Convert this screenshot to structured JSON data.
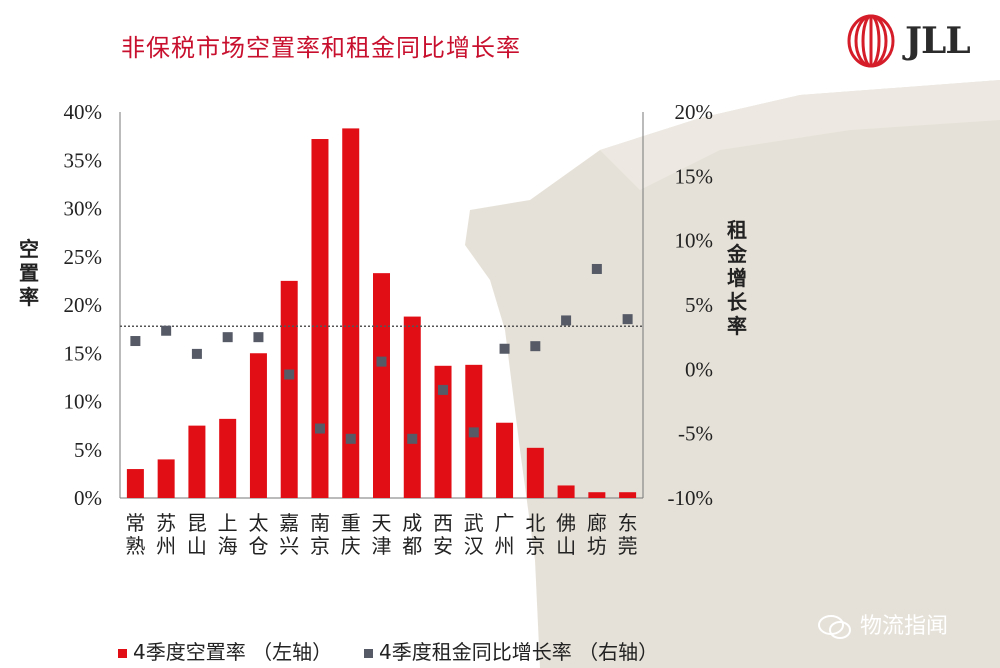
{
  "chart_data": {
    "type": "bar",
    "title": "非保税市场空置率和租金同比增长率",
    "categories": [
      "常熟",
      "苏州",
      "昆山",
      "上海",
      "太仓",
      "嘉兴",
      "南京",
      "重庆",
      "天津",
      "成都",
      "西安",
      "武汉",
      "广州",
      "北京",
      "佛山",
      "廊坊",
      "东莞"
    ],
    "series": [
      {
        "name": "4季度空置率 （左轴）",
        "axis": "left",
        "type": "bar",
        "values": [
          3.0,
          4.0,
          7.5,
          8.2,
          15.0,
          22.5,
          37.2,
          38.3,
          23.3,
          18.8,
          13.7,
          13.8,
          7.8,
          5.2,
          1.3,
          0.6,
          0.6
        ]
      },
      {
        "name": "4季度租金同比增长率 （右轴）",
        "axis": "right",
        "type": "scatter",
        "values": [
          2.2,
          3.0,
          1.2,
          2.5,
          2.5,
          -0.4,
          -4.6,
          -5.4,
          0.6,
          -5.4,
          -1.6,
          -4.9,
          1.6,
          1.8,
          3.8,
          7.8,
          3.9
        ]
      }
    ],
    "ylabel_left": "空置率",
    "ylabel_right": "租金增长率",
    "ylim_left": [
      0,
      40
    ],
    "ylim_right": [
      -10,
      20
    ],
    "yticks_left": [
      "0%",
      "5%",
      "10%",
      "15%",
      "20%",
      "25%",
      "30%",
      "35%",
      "40%"
    ],
    "yticks_right": [
      "-10%",
      "-5%",
      "0%",
      "5%",
      "10%",
      "15%",
      "20%"
    ],
    "reference_line_left": 17.8,
    "legend_position": "bottom",
    "grid": false
  },
  "logo": {
    "text": "JLL"
  },
  "watermark": {
    "text": "物流指闻"
  },
  "colors": {
    "bar": "#e10e16",
    "marker": "#555a66",
    "title": "#c8102e",
    "refline": "#555555"
  }
}
